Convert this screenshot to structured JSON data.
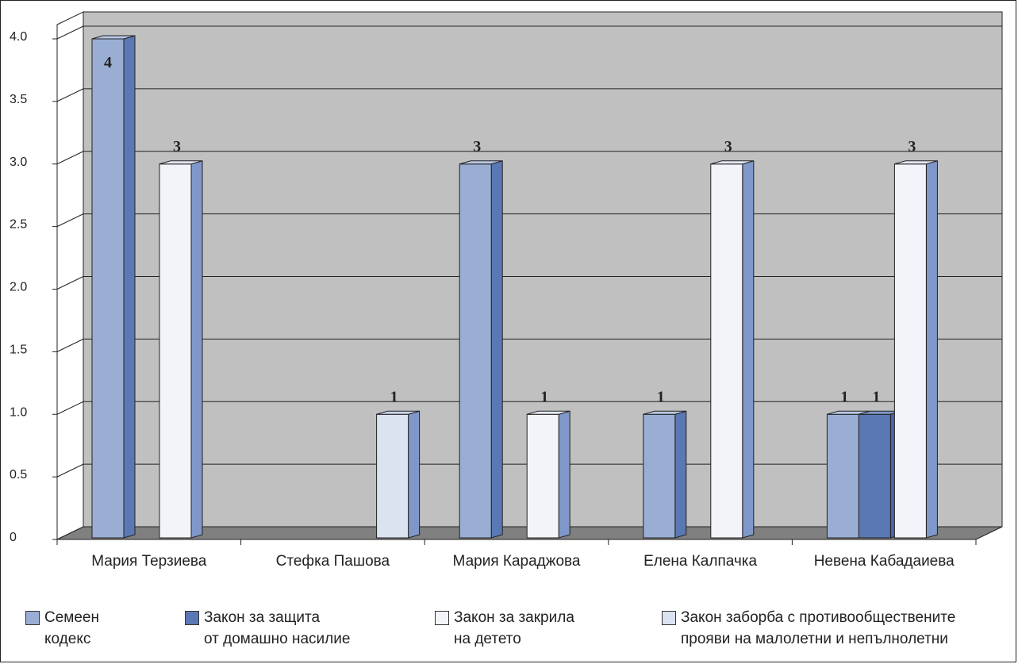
{
  "colors": {
    "semeen": "#9aaed3",
    "nasilie": "#5a78b4",
    "zakrila": "#f2f4fa",
    "zaborba": "#dbe2f0",
    "wall": "#c0c0c0",
    "floor": "#808080"
  },
  "chart_data": {
    "type": "bar",
    "categories": [
      "Мария Терзиева",
      "Стефка Пашова",
      "Мария Караджова",
      "Елена Калпачка",
      "Невена Кабадаиева"
    ],
    "ylim": [
      0,
      4
    ],
    "yticks": [
      "0",
      "0.5",
      "1.0",
      "1.5",
      "2.0",
      "2.5",
      "3.0",
      "3.5",
      "4.0"
    ],
    "grid": true,
    "legend_position": "bottom",
    "bars": [
      {
        "category": 0,
        "series": 0,
        "value": 4,
        "label": "4"
      },
      {
        "category": 0,
        "series": 2,
        "value": 3,
        "label": "3"
      },
      {
        "category": 1,
        "series": 3,
        "value": 1,
        "label": "1"
      },
      {
        "category": 2,
        "series": 0,
        "value": 3,
        "label": "3"
      },
      {
        "category": 2,
        "series": 2,
        "value": 1,
        "label": "1"
      },
      {
        "category": 3,
        "series": 0,
        "value": 1,
        "label": "1"
      },
      {
        "category": 3,
        "series": 2,
        "value": 3,
        "label": "3"
      },
      {
        "category": 4,
        "series": 0,
        "value": 1,
        "label": "1"
      },
      {
        "category": 4,
        "series": 1,
        "value": 1,
        "label": "1"
      },
      {
        "category": 4,
        "series": 2,
        "value": 3,
        "label": "3"
      }
    ],
    "series": [
      {
        "name_line1": "Семеен",
        "name_line2": "кодекс",
        "color_key": "semeen"
      },
      {
        "name_line1": "Закон за защита",
        "name_line2": "от домашно насилие",
        "color_key": "nasilie"
      },
      {
        "name_line1": "Закон за закрила",
        "name_line2": "на детето",
        "color_key": "zakrila"
      },
      {
        "name_line1": "Закон заборба с противообществените",
        "name_line2": "прояви на малолетни и непълнолетни",
        "color_key": "zaborba"
      }
    ]
  }
}
